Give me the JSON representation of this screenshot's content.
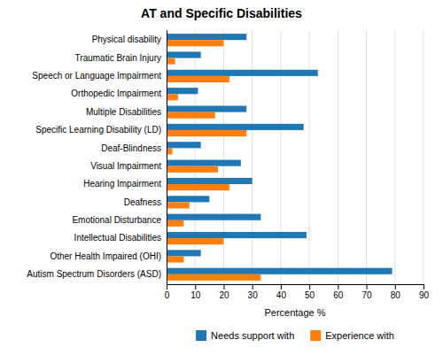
{
  "chart_data": {
    "type": "bar",
    "orientation": "horizontal",
    "title": "AT and Specific Disabilities",
    "xlabel": "Percentage %",
    "categories": [
      "Autism Spectrum Disorders (ASD)",
      "Other Health Impaired (OHI)",
      "Intellectual Disabilities",
      "Emotional Disturbance",
      "Deafness",
      "Hearing Impairment",
      "Visual Impairment",
      "Deaf-Blindness",
      "Specific Learning Disability (LD)",
      "Multiple Disabilities",
      "Orthopedic Impairment",
      "Speech or Language Impairment",
      "Traumatic Brain Injury",
      "Physical disability"
    ],
    "series": [
      {
        "name": "Needs support with",
        "values": [
          79,
          12,
          49,
          33,
          15,
          30,
          26,
          12,
          48,
          28,
          11,
          53,
          12,
          28
        ]
      },
      {
        "name": "Experience with",
        "values": [
          33,
          6,
          20,
          6,
          8,
          22,
          18,
          2,
          28,
          17,
          4,
          22,
          3,
          20
        ]
      }
    ],
    "xlim": [
      0,
      90
    ],
    "xticks": [
      0,
      10,
      20,
      30,
      40,
      50,
      60,
      70,
      80,
      90
    ],
    "grid": true,
    "legend": "bottom"
  }
}
